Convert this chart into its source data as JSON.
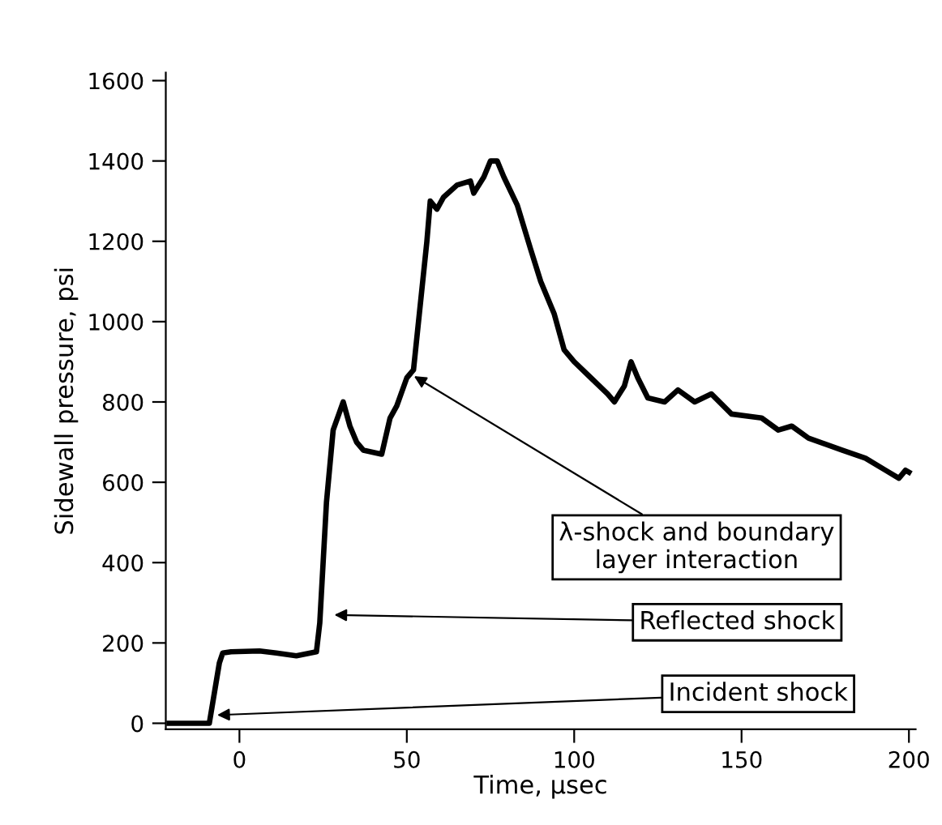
{
  "chart_data": {
    "type": "line",
    "xlabel": "Time, µsec",
    "ylabel": "Sidewall pressure, psi",
    "xlim": [
      -22,
      202
    ],
    "ylim": [
      -15,
      1620
    ],
    "xticks": [
      0,
      50,
      100,
      150,
      200
    ],
    "yticks": [
      0,
      200,
      400,
      600,
      800,
      1000,
      1200,
      1400,
      1600
    ],
    "grid": false,
    "marker": "none",
    "line_style": "solid",
    "series": [
      {
        "color": "#000000",
        "x": [
          -21,
          -9,
          -8,
          -6,
          -5,
          -2.5,
          6,
          11,
          17,
          23,
          24,
          26,
          28,
          31,
          33,
          35,
          37,
          42.5,
          45,
          47,
          50,
          52,
          53,
          56,
          57,
          59,
          61,
          65,
          69,
          70,
          73,
          75,
          77,
          79,
          83,
          87,
          90,
          94,
          97,
          100,
          105,
          110,
          112,
          115,
          117,
          119,
          122,
          127,
          131,
          136,
          141,
          147,
          156,
          161,
          165,
          170,
          180,
          187,
          193,
          197,
          199,
          200
        ],
        "values": [
          0,
          0,
          50,
          150,
          175,
          178,
          180,
          175,
          168,
          178,
          250,
          550,
          730,
          800,
          740,
          700,
          680,
          670,
          760,
          790,
          860,
          880,
          960,
          1200,
          1300,
          1280,
          1310,
          1340,
          1350,
          1320,
          1360,
          1400,
          1400,
          1360,
          1290,
          1180,
          1100,
          1020,
          930,
          900,
          860,
          820,
          800,
          840,
          900,
          860,
          810,
          800,
          830,
          800,
          820,
          770,
          760,
          730,
          740,
          710,
          680,
          660,
          630,
          610,
          630,
          625
        ]
      }
    ],
    "annotations": [
      {
        "text": "λ-shock and boundary\nlayer interaction",
        "x": 51,
        "y": 870
      },
      {
        "text": "Reflected shock",
        "x": 27,
        "y": 270
      },
      {
        "text": "Incident shock",
        "x": -8,
        "y": 20
      }
    ]
  }
}
